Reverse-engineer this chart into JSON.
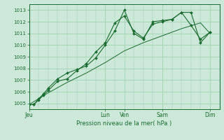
{
  "bg_color": "#cce8d8",
  "grid_color": "#99ccaa",
  "line_color": "#1a6b30",
  "title": "Pression niveau de la mer( hPa )",
  "ylim": [
    1004.5,
    1013.5
  ],
  "yticks": [
    1005,
    1006,
    1007,
    1008,
    1009,
    1010,
    1011,
    1012,
    1013
  ],
  "day_labels": [
    "Jeu",
    "Lun",
    "Ven",
    "Sam",
    "Dim"
  ],
  "day_positions": [
    0,
    8,
    10,
    14,
    19
  ],
  "xlim": [
    0,
    20
  ],
  "line1_x": [
    0,
    0.5,
    1,
    1.5,
    2,
    3,
    4,
    5,
    6,
    7,
    8,
    9,
    10,
    11,
    12,
    13,
    14,
    15,
    16,
    17,
    18,
    19
  ],
  "line1_y": [
    1004.9,
    1004.9,
    1005.3,
    1005.7,
    1006.1,
    1006.9,
    1007.1,
    1007.8,
    1008.4,
    1009.4,
    1010.2,
    1011.9,
    1012.5,
    1011.2,
    1010.6,
    1011.8,
    1012.0,
    1012.2,
    1012.8,
    1012.8,
    1010.2,
    1011.1
  ],
  "line2_x": [
    0,
    2,
    4,
    6,
    8,
    10,
    12,
    14,
    16,
    18,
    19
  ],
  "line2_y": [
    1004.9,
    1005.9,
    1006.8,
    1007.6,
    1008.5,
    1009.5,
    1010.2,
    1010.8,
    1011.4,
    1011.9,
    1011.0
  ],
  "line3_x": [
    0,
    0.5,
    1,
    1.5,
    2,
    3,
    4,
    5,
    6,
    7,
    8,
    9,
    10,
    11,
    12,
    13,
    14,
    15,
    16,
    17,
    18,
    19
  ],
  "line3_y": [
    1004.9,
    1004.9,
    1005.4,
    1005.8,
    1006.3,
    1007.1,
    1007.6,
    1007.9,
    1008.2,
    1008.9,
    1010.0,
    1011.2,
    1013.0,
    1011.0,
    1010.5,
    1012.0,
    1012.1,
    1012.2,
    1012.8,
    1011.7,
    1010.5,
    1011.1
  ]
}
